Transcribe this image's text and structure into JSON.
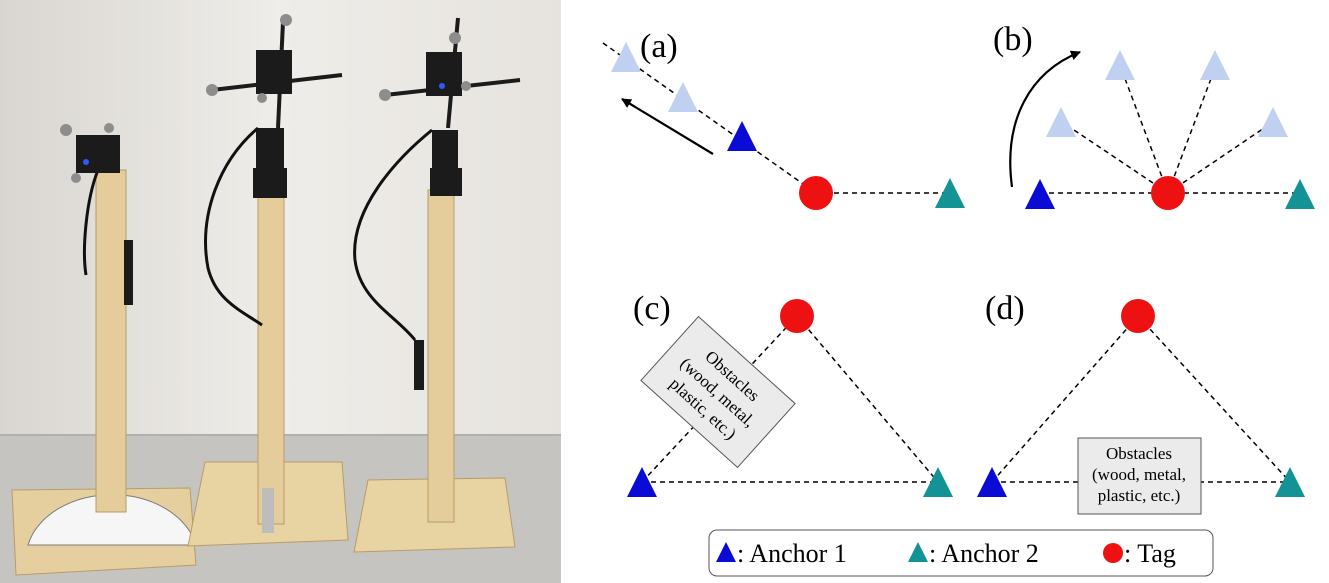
{
  "panels": {
    "a": "(a)",
    "b": "(b)",
    "c": "(c)",
    "d": "(d)"
  },
  "obstacle_c": [
    "Obstacles",
    "(wood, metal,",
    "plastic, etc.)"
  ],
  "obstacle_d": [
    "Obstacles",
    "(wood, metal,",
    "plastic, etc.)"
  ],
  "legend": {
    "anchor1": ": Anchor 1",
    "anchor2": ": Anchor 2",
    "tag": ": Tag"
  },
  "colors": {
    "anchor1": "#0b0bd6",
    "anchor2": "#139396",
    "anchor1_faded": "#bfd0f0",
    "tag": "#ee1111",
    "wall": "#e9e6e1",
    "floor": "#c7c5c3",
    "wood": "#e5cf9e"
  }
}
